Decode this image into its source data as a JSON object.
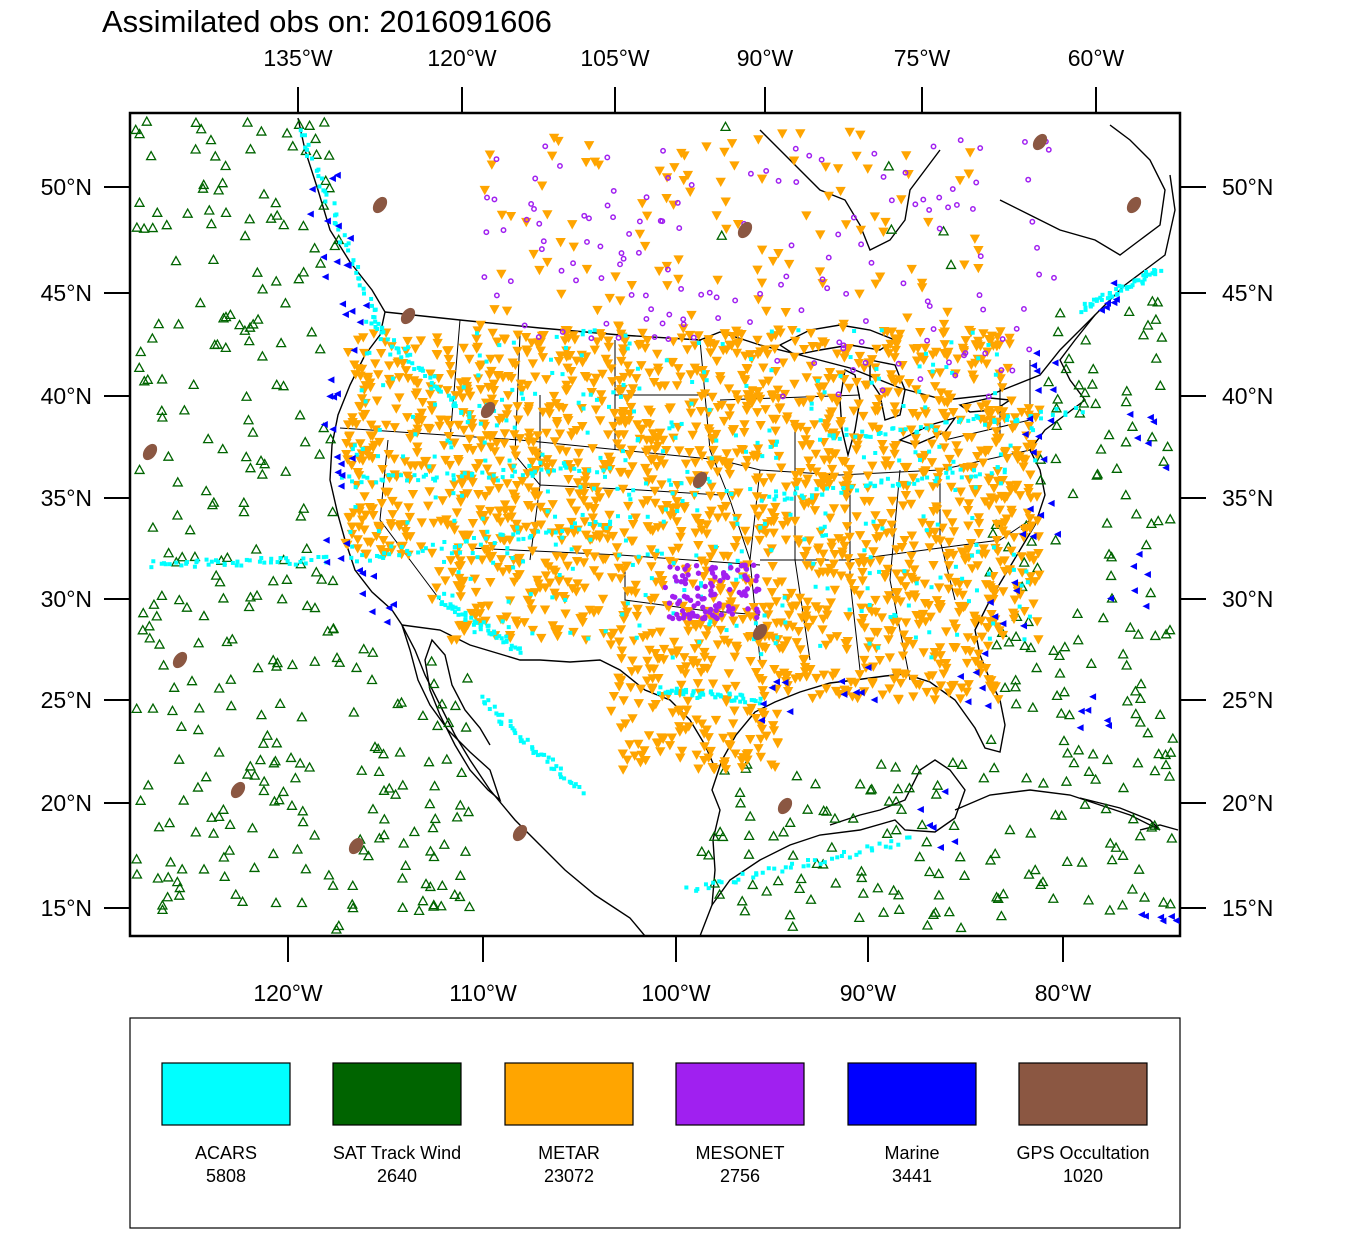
{
  "title": "Assimilated obs on: 2016091606",
  "top_lon_labels": [
    "135°W",
    "120°W",
    "105°W",
    "90°W",
    "75°W",
    "60°W"
  ],
  "bottom_lon_labels": [
    "120°W",
    "110°W",
    "100°W",
    "90°W",
    "80°W"
  ],
  "lat_labels": [
    "50°N",
    "45°N",
    "40°N",
    "35°N",
    "30°N",
    "25°N",
    "20°N",
    "15°N"
  ],
  "legend": [
    {
      "name": "ACARS",
      "count": "5808",
      "color": "#00FFFF"
    },
    {
      "name": "SAT Track Wind",
      "count": "2640",
      "color": "#006400"
    },
    {
      "name": "METAR",
      "count": "23072",
      "color": "#FFA500"
    },
    {
      "name": "MESONET",
      "count": "2756",
      "color": "#A020F0"
    },
    {
      "name": "Marine",
      "count": "3441",
      "color": "#0000FF"
    },
    {
      "name": "GPS Occultation",
      "count": "1020",
      "color": "#8B5742"
    }
  ]
}
